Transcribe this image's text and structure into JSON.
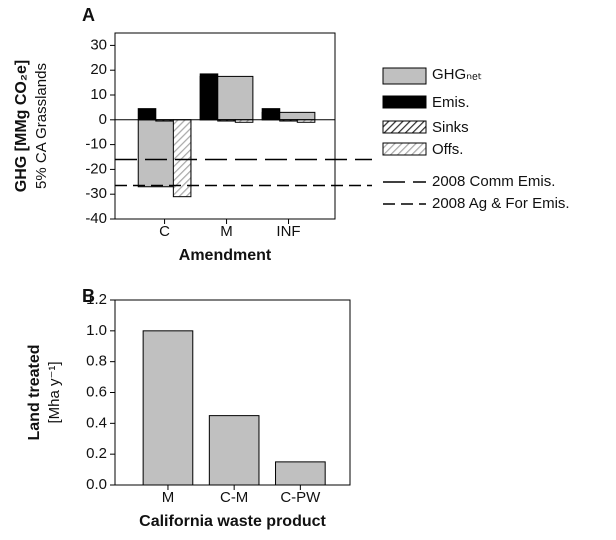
{
  "chart_data": [
    {
      "type": "bar",
      "panel_label": "A",
      "ylabel": [
        "GHG [MMg CO₂e]",
        "5% CA Grasslands"
      ],
      "xlabel": "Amendment",
      "categories": [
        "C",
        "M",
        "INF"
      ],
      "series": [
        {
          "name": "GHGₙₑₜ",
          "color": "#c0c0c0",
          "fill_style": "solid",
          "values": [
            -27,
            17.5,
            3
          ]
        },
        {
          "name": "Emis.",
          "color": "#000000",
          "fill_style": "solid",
          "values": [
            4.5,
            18.5,
            4.5
          ]
        },
        {
          "name": "Sinks",
          "color": "#333333",
          "fill_style": "hatch",
          "values": [
            -0.5,
            -0.5,
            -0.5
          ]
        },
        {
          "name": "Offs.",
          "color": "#aaaaaa",
          "fill_style": "hatch",
          "values": [
            -31,
            -1,
            -1
          ]
        }
      ],
      "reference_lines": [
        {
          "label": "2008 Comm Emis.",
          "value": -16,
          "dash": "long"
        },
        {
          "label": "2008 Ag & For Emis.",
          "value": -26.5,
          "dash": "short"
        }
      ],
      "ylim": [
        -40,
        35
      ],
      "yticks": [
        -40,
        -30,
        -20,
        -10,
        0,
        10,
        20,
        30
      ]
    },
    {
      "type": "bar",
      "panel_label": "B",
      "ylabel": [
        "Land treated",
        "[Mha y⁻¹]"
      ],
      "xlabel": "California waste product",
      "categories": [
        "M",
        "C-M",
        "C-PW"
      ],
      "values": [
        1.0,
        0.45,
        0.15
      ],
      "color": "#c0c0c0",
      "ylim": [
        0,
        1.2
      ],
      "yticks": [
        {
          "value": 0,
          "label": "0.0"
        },
        0.2,
        0.4,
        0.6,
        0.8,
        {
          "value": 1,
          "label": "1.0"
        },
        1.2
      ]
    }
  ]
}
